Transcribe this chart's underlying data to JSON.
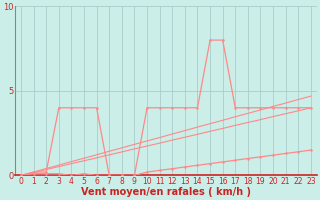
{
  "title": "",
  "xlabel": "Vent moyen/en rafales ( km/h )",
  "bg_color": "#cceee8",
  "grid_color": "#aacccc",
  "line_color": "#ff8888",
  "x_values": [
    0,
    1,
    2,
    3,
    4,
    5,
    6,
    7,
    8,
    9,
    10,
    11,
    12,
    13,
    14,
    15,
    16,
    17,
    18,
    19,
    20,
    21,
    22,
    23
  ],
  "y_rafales": [
    0.0,
    0.2,
    0.2,
    4.0,
    4.0,
    4.0,
    4.0,
    0.0,
    0.0,
    0.0,
    4.0,
    4.0,
    4.0,
    4.0,
    4.0,
    8.0,
    8.0,
    4.0,
    4.0,
    4.0,
    4.0,
    4.0,
    4.0,
    4.0
  ],
  "y_vent_moyen": [
    0.0,
    0.1,
    0.1,
    0.1,
    0.0,
    0.1,
    0.0,
    0.0,
    0.0,
    0.0,
    0.2,
    0.3,
    0.4,
    0.5,
    0.6,
    0.7,
    0.8,
    0.9,
    1.0,
    1.1,
    1.2,
    1.3,
    1.4,
    1.5
  ],
  "y_trend1": [
    0.0,
    0.17,
    0.35,
    0.52,
    0.7,
    0.87,
    1.04,
    1.22,
    1.39,
    1.57,
    1.74,
    1.91,
    2.09,
    2.26,
    2.43,
    2.61,
    2.78,
    2.96,
    3.13,
    3.3,
    3.48,
    3.65,
    3.82,
    4.0
  ],
  "y_trend2": [
    0.0,
    0.2,
    0.41,
    0.61,
    0.82,
    1.02,
    1.22,
    1.43,
    1.63,
    1.84,
    2.04,
    2.24,
    2.45,
    2.65,
    2.86,
    3.06,
    3.26,
    3.47,
    3.67,
    3.87,
    4.08,
    4.28,
    4.49,
    4.69
  ],
  "ylim": [
    0,
    10
  ],
  "xlim": [
    -0.5,
    23.5
  ],
  "yticks": [
    0,
    5,
    10
  ],
  "xticks": [
    0,
    1,
    2,
    3,
    4,
    5,
    6,
    7,
    8,
    9,
    10,
    11,
    12,
    13,
    14,
    15,
    16,
    17,
    18,
    19,
    20,
    21,
    22,
    23
  ],
  "tick_color": "#cc2222",
  "tick_fontsize": 5.5,
  "label_fontsize": 7,
  "label_color": "#cc2222"
}
